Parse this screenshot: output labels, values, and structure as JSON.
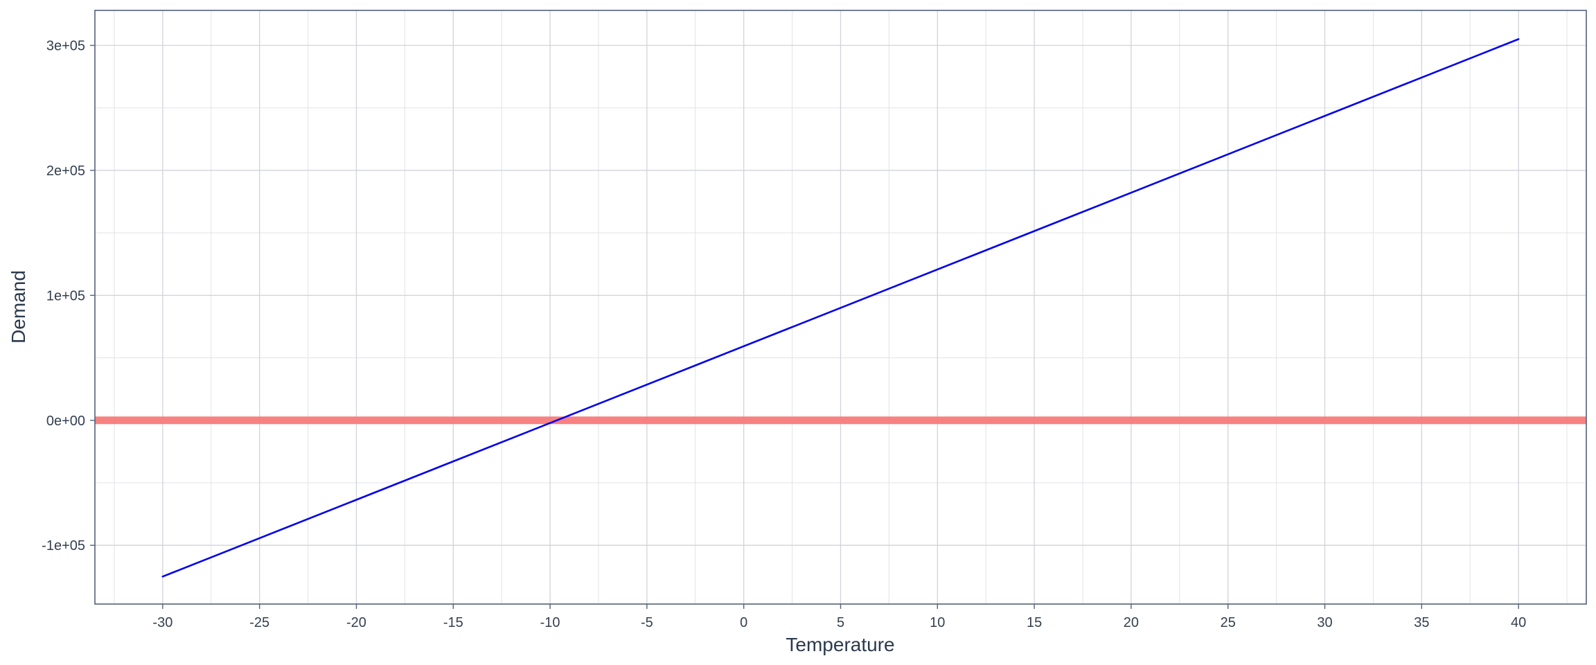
{
  "chart_data": {
    "type": "line",
    "xlabel": "Temperature",
    "ylabel": "Demand",
    "xlim": [
      -33.5,
      43.5
    ],
    "ylim": [
      -147000,
      328000
    ],
    "x_ticks": [
      -30,
      -25,
      -20,
      -15,
      -10,
      -5,
      0,
      5,
      10,
      15,
      20,
      25,
      30,
      35,
      40
    ],
    "x_tick_labels": [
      "-30",
      "-25",
      "-20",
      "-15",
      "-10",
      "-5",
      "0",
      "5",
      "10",
      "15",
      "20",
      "25",
      "30",
      "35",
      "40"
    ],
    "y_ticks": [
      -100000,
      0,
      100000,
      200000,
      300000
    ],
    "y_tick_labels": [
      "-1e+05",
      "0e+00",
      "1e+05",
      "2e+05",
      "3e+05"
    ],
    "grid": true,
    "series": [
      {
        "color": "#0000ee",
        "x": [
          -30,
          40
        ],
        "y": [
          -125000,
          305000
        ]
      }
    ],
    "reference_line": {
      "y": 0,
      "color": "#f87a7a"
    }
  }
}
